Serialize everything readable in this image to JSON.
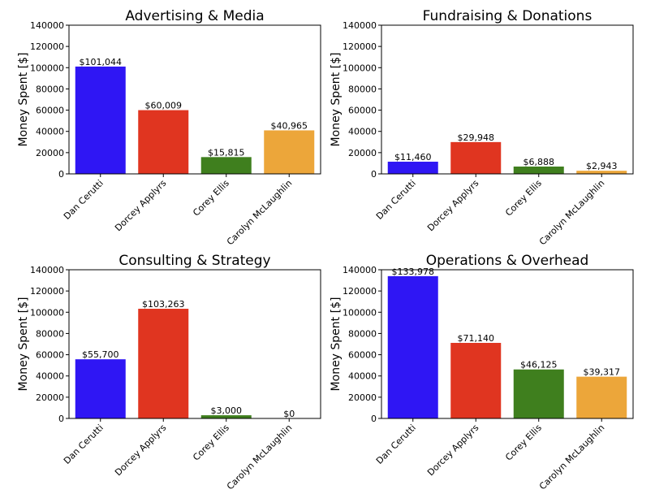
{
  "figure": {
    "ylabel": "Money Spent [$]"
  },
  "chart_data": [
    {
      "type": "bar",
      "title": "Advertising & Media",
      "categories": [
        "Dan Cerutti",
        "Dorcey Applyrs",
        "Corey Ellis",
        "Carolyn McLaughlin"
      ],
      "values": [
        101044,
        60009,
        15815,
        40965
      ],
      "value_labels": [
        "$101,044",
        "$60,009",
        "$15,815",
        "$40,965"
      ],
      "ylabel": "Money Spent [$]",
      "ylim": [
        0,
        140000
      ],
      "yticks": [
        "0",
        "20000",
        "40000",
        "60000",
        "80000",
        "100000",
        "120000",
        "140000"
      ],
      "grid": false
    },
    {
      "type": "bar",
      "title": "Fundraising & Donations",
      "categories": [
        "Dan Cerutti",
        "Dorcey Applyrs",
        "Corey Ellis",
        "Carolyn McLaughlin"
      ],
      "values": [
        11460,
        29948,
        6888,
        2943
      ],
      "value_labels": [
        "$11,460",
        "$29,948",
        "$6,888",
        "$2,943"
      ],
      "ylabel": "Money Spent [$]",
      "ylim": [
        0,
        140000
      ],
      "yticks": [
        "0",
        "20000",
        "40000",
        "60000",
        "80000",
        "100000",
        "120000",
        "140000"
      ],
      "grid": false
    },
    {
      "type": "bar",
      "title": "Consulting & Strategy",
      "categories": [
        "Dan Cerutti",
        "Dorcey Applyrs",
        "Corey Ellis",
        "Carolyn McLaughlin"
      ],
      "values": [
        55700,
        103263,
        3000,
        0
      ],
      "value_labels": [
        "$55,700",
        "$103,263",
        "$3,000",
        "$0"
      ],
      "ylabel": "Money Spent [$]",
      "ylim": [
        0,
        140000
      ],
      "yticks": [
        "0",
        "20000",
        "40000",
        "60000",
        "80000",
        "100000",
        "120000",
        "140000"
      ],
      "grid": false
    },
    {
      "type": "bar",
      "title": "Operations & Overhead",
      "categories": [
        "Dan Cerutti",
        "Dorcey Applyrs",
        "Corey Ellis",
        "Carolyn McLaughlin"
      ],
      "values": [
        133978,
        71140,
        46125,
        39317
      ],
      "value_labels": [
        "$133,978",
        "$71,140",
        "$46,125",
        "$39,317"
      ],
      "ylabel": "Money Spent [$]",
      "ylim": [
        0,
        140000
      ],
      "yticks": [
        "0",
        "20000",
        "40000",
        "60000",
        "80000",
        "100000",
        "120000",
        "140000"
      ],
      "grid": false
    }
  ],
  "colors": {
    "Dan Cerutti": "#2f16f4",
    "Dorcey Applyrs": "#e03520",
    "Corey Ellis": "#3f7f1e",
    "Carolyn McLaughlin": "#eca63a"
  }
}
